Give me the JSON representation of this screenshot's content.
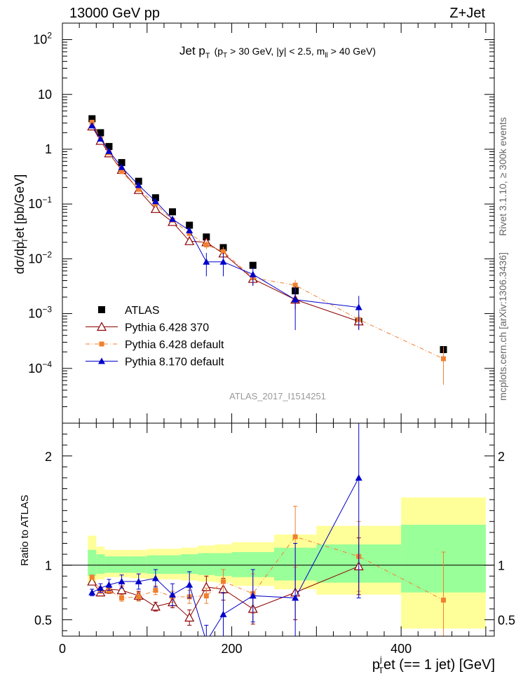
{
  "header": {
    "left": "13000 GeV pp",
    "right": "Z+Jet",
    "plot_title": "Jet p",
    "plot_title_sub": "T",
    "plot_title_cuts": "(p",
    "plot_title_cuts_sub": "T",
    "plot_title_cuts_rest": "> 30 GeV, |y| < 2.5, m",
    "plot_title_cuts_sub2": "ll",
    "plot_title_cuts_end": "> 40 GeV)"
  },
  "side": {
    "rivet": "Rivet 3.1.10, ≥ 300k events",
    "mcplots": "mcplots.cern.ch [arXiv:1306.3436]"
  },
  "watermark": "ATLAS_2017_I1514251",
  "colors": {
    "atlas": "#000000",
    "p6_370": "#8b0000",
    "p6_default": "#f08030",
    "p8_default": "#0000cc",
    "band_inner": "#99ff99",
    "band_outer": "#ffff99"
  },
  "chart_data": [
    {
      "type": "scatter",
      "panel": "main",
      "ylabel": "dσ/dp",
      "ylabel_sup": "j",
      "ylabel_sub": "T",
      "ylabel_rest": "et [pb/GeV]",
      "xlim": [
        0,
        510
      ],
      "ylim": [
        1e-05,
        200
      ],
      "yscale": "log",
      "ytick_labels": [
        {
          "value": 0.0001,
          "base": "10",
          "exp": "−4"
        },
        {
          "value": 0.001,
          "base": "10",
          "exp": "−3"
        },
        {
          "value": 0.01,
          "base": "10",
          "exp": "−2"
        },
        {
          "value": 0.1,
          "base": "10",
          "exp": "−1"
        },
        {
          "value": 1,
          "base": "1",
          "exp": ""
        },
        {
          "value": 10,
          "base": "10",
          "exp": ""
        },
        {
          "value": 100,
          "base": "10",
          "exp": "2"
        }
      ],
      "legend_position": "lower-left",
      "series": [
        {
          "name": "ATLAS",
          "marker": "square",
          "x": [
            35,
            45,
            55,
            70,
            90,
            110,
            130,
            150,
            170,
            190,
            225,
            275,
            350,
            450
          ],
          "y": [
            3.6,
            2.0,
            1.12,
            0.57,
            0.26,
            0.13,
            0.072,
            0.041,
            0.025,
            0.016,
            0.0076,
            0.0026,
            0.00072,
            0.00022
          ],
          "yerr": [
            0.1,
            0.06,
            0.03,
            0.015,
            0.007,
            0.004,
            0.002,
            0.0012,
            0.0007,
            0.0005,
            0.00025,
            0.0001,
            4e-05,
            2e-05
          ]
        },
        {
          "name": "Pythia 6.428 370",
          "marker": "open-triangle",
          "x": [
            35,
            45,
            55,
            70,
            90,
            110,
            130,
            150,
            170,
            190,
            225,
            275,
            350
          ],
          "y": [
            2.6,
            1.42,
            0.84,
            0.42,
            0.18,
            0.081,
            0.047,
            0.021,
            0.02,
            0.0125,
            0.0043,
            0.0018,
            0.00072
          ],
          "yerr": [
            0.05,
            0.04,
            0.03,
            0.015,
            0.008,
            0.005,
            0.004,
            0.003,
            0.003,
            0.003,
            0.001,
            0.0006,
            0.0002
          ]
        },
        {
          "name": "Pythia 6.428 default",
          "marker": "filled-square-small",
          "dashed": true,
          "x": [
            35,
            45,
            55,
            70,
            90,
            110,
            130,
            150,
            170,
            190,
            225,
            275,
            350,
            450
          ],
          "y": [
            3.1,
            1.55,
            0.86,
            0.39,
            0.185,
            0.1,
            0.051,
            0.029,
            0.018,
            0.0135,
            0.0045,
            0.0033,
            0.00078,
            0.00015
          ],
          "yerr": [
            0.06,
            0.04,
            0.03,
            0.015,
            0.008,
            0.005,
            0.004,
            0.003,
            0.003,
            0.003,
            0.001,
            0.0008,
            0.0002,
            0.0001
          ]
        },
        {
          "name": "Pythia 8.170 default",
          "marker": "filled-triangle",
          "x": [
            35,
            45,
            55,
            70,
            90,
            110,
            130,
            150,
            170,
            190,
            225,
            275,
            350
          ],
          "y": [
            2.7,
            1.55,
            0.92,
            0.47,
            0.22,
            0.112,
            0.053,
            0.033,
            0.0088,
            0.0088,
            0.0052,
            0.0018,
            0.0013
          ],
          "yerr": [
            0.06,
            0.04,
            0.03,
            0.015,
            0.009,
            0.006,
            0.005,
            0.004,
            0.004,
            0.004,
            0.002,
            0.0013,
            0.0008
          ]
        }
      ]
    },
    {
      "type": "scatter",
      "panel": "ratio",
      "ylabel": "Ratio to ATLAS",
      "xlabel": "p",
      "xlabel_sup": "j",
      "xlabel_sub": "T",
      "xlabel_rest": "et (== 1 jet) [GeV]",
      "xlim": [
        0,
        510
      ],
      "ylim": [
        0.35,
        2.3
      ],
      "xticks": [
        0,
        200,
        400
      ],
      "yticks": [
        0.5,
        1,
        2
      ],
      "reference_line": 1,
      "bands": [
        {
          "x0": 30,
          "x1": 40,
          "inner": [
            0.9,
            1.14
          ],
          "outer": [
            0.84,
            1.27
          ]
        },
        {
          "x0": 40,
          "x1": 50,
          "inner": [
            0.92,
            1.1
          ],
          "outer": [
            0.87,
            1.17
          ]
        },
        {
          "x0": 50,
          "x1": 60,
          "inner": [
            0.93,
            1.08
          ],
          "outer": [
            0.89,
            1.14
          ]
        },
        {
          "x0": 60,
          "x1": 80,
          "inner": [
            0.93,
            1.08
          ],
          "outer": [
            0.89,
            1.14
          ]
        },
        {
          "x0": 80,
          "x1": 100,
          "inner": [
            0.93,
            1.08
          ],
          "outer": [
            0.88,
            1.14
          ]
        },
        {
          "x0": 100,
          "x1": 120,
          "inner": [
            0.92,
            1.09
          ],
          "outer": [
            0.87,
            1.15
          ]
        },
        {
          "x0": 120,
          "x1": 140,
          "inner": [
            0.92,
            1.09
          ],
          "outer": [
            0.87,
            1.15
          ]
        },
        {
          "x0": 140,
          "x1": 160,
          "inner": [
            0.92,
            1.1
          ],
          "outer": [
            0.86,
            1.16
          ]
        },
        {
          "x0": 160,
          "x1": 180,
          "inner": [
            0.91,
            1.11
          ],
          "outer": [
            0.85,
            1.18
          ]
        },
        {
          "x0": 180,
          "x1": 200,
          "inner": [
            0.9,
            1.11
          ],
          "outer": [
            0.84,
            1.19
          ]
        },
        {
          "x0": 200,
          "x1": 250,
          "inner": [
            0.89,
            1.12
          ],
          "outer": [
            0.81,
            1.21
          ]
        },
        {
          "x0": 250,
          "x1": 300,
          "inner": [
            0.86,
            1.16
          ],
          "outer": [
            0.78,
            1.28
          ]
        },
        {
          "x0": 300,
          "x1": 400,
          "inner": [
            0.84,
            1.19
          ],
          "outer": [
            0.73,
            1.36
          ]
        },
        {
          "x0": 400,
          "x1": 500,
          "inner": [
            0.75,
            1.37
          ],
          "outer": [
            0.42,
            1.62
          ]
        }
      ],
      "series": [
        {
          "name": "Pythia 6.428 370",
          "x": [
            35,
            45,
            55,
            70,
            90,
            110,
            130,
            150,
            170,
            190,
            225,
            275,
            350
          ],
          "y": [
            0.85,
            0.75,
            0.78,
            0.77,
            0.72,
            0.62,
            0.66,
            0.52,
            0.8,
            0.78,
            0.6,
            0.75,
            0.99
          ],
          "yerr": [
            0.03,
            0.03,
            0.04,
            0.04,
            0.04,
            0.04,
            0.05,
            0.07,
            0.1,
            0.1,
            0.14,
            0.25,
            0.26
          ]
        },
        {
          "name": "Pythia 6.428 default",
          "x": [
            35,
            45,
            55,
            70,
            90,
            110,
            130,
            150,
            170,
            190,
            225,
            275,
            350,
            450
          ],
          "y": [
            0.89,
            0.77,
            0.77,
            0.7,
            0.71,
            0.77,
            0.71,
            0.71,
            0.72,
            0.85,
            0.74,
            1.26,
            1.08,
            0.68
          ],
          "yerr": [
            0.02,
            0.03,
            0.03,
            0.03,
            0.04,
            0.04,
            0.05,
            0.06,
            0.07,
            0.11,
            0.18,
            0.28,
            0.32,
            0.44
          ]
        },
        {
          "name": "Pythia 8.170 default",
          "x": [
            35,
            45,
            55,
            70,
            90,
            110,
            130,
            150,
            170,
            190,
            225,
            275,
            350
          ],
          "y": [
            0.75,
            0.79,
            0.82,
            0.85,
            0.85,
            0.88,
            0.73,
            0.82,
            0.3,
            0.55,
            0.72,
            0.7,
            1.8
          ],
          "yerr": [
            0.03,
            0.04,
            0.05,
            0.06,
            0.07,
            0.08,
            0.1,
            0.12,
            0.15,
            0.2,
            0.24,
            0.5,
            1.1
          ]
        }
      ]
    }
  ]
}
